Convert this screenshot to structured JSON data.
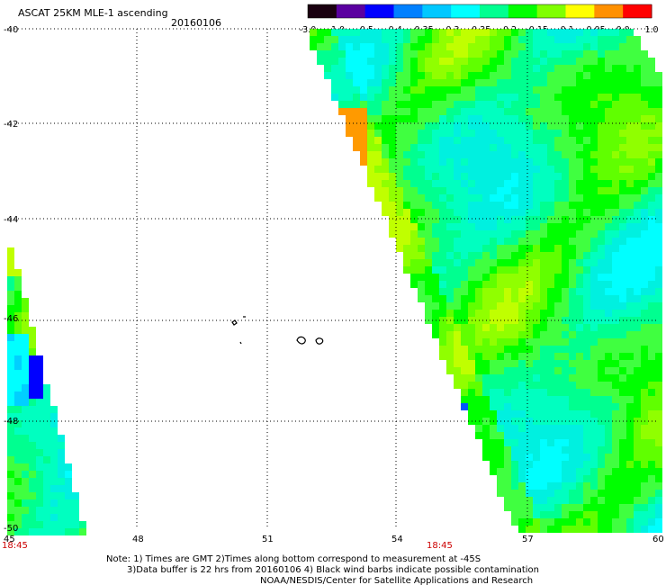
{
  "title": "ASCAT 25KM MLE-1 ascending",
  "date": "20160106",
  "colorbar": {
    "labels": [
      "-3.0",
      "-1.0",
      "-0.5",
      "-0.4",
      "-0.35",
      "-0.3",
      "-0.25",
      "-0.2",
      "-0.15",
      "-0.1",
      "-0.05",
      "0.0",
      "1.0"
    ],
    "colors": [
      "#1a0010",
      "#5a00a0",
      "#0000ff",
      "#0080ff",
      "#00c8ff",
      "#00ffff",
      "#00ff90",
      "#00ff00",
      "#80ff00",
      "#ffff00",
      "#ff9000",
      "#ff0000"
    ]
  },
  "y_axis": {
    "labels": [
      "-40",
      "-42",
      "-44",
      "-46",
      "-48",
      "-50"
    ]
  },
  "x_axis": {
    "labels": [
      "45",
      "48",
      "51",
      "54",
      "57",
      "60"
    ]
  },
  "pass_times": [
    "18:45",
    "18:45"
  ],
  "notes": {
    "line1": "Note: 1) Times are GMT 2)Times along bottom correspond to measurement at -45S",
    "line2": "3)Data buffer is 22 hrs from 20160106 4) Black wind barbs indicate possible contamination",
    "line3": "NOAA/NESDIS/Center for Satellite Applications and Research"
  }
}
